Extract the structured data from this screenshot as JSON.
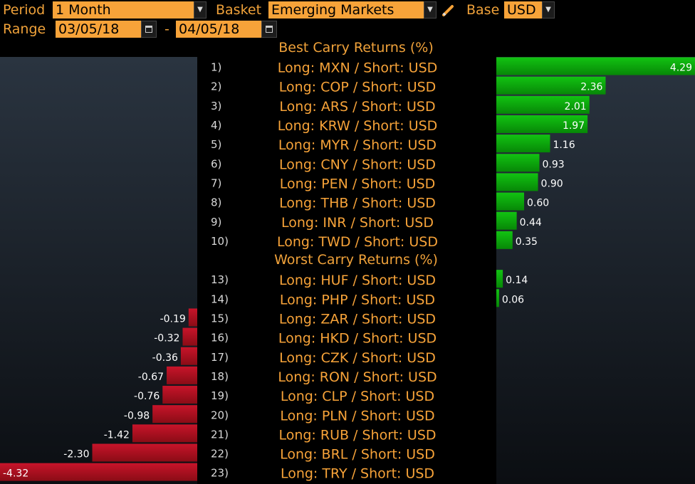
{
  "toolbar": {
    "period_label": "Period",
    "period_value": "1 Month",
    "basket_label": "Basket",
    "basket_value": "Emerging Markets",
    "base_label": "Base",
    "base_value": "USD",
    "range_label": "Range",
    "range_start": "03/05/18",
    "range_sep": "-",
    "range_end": "04/05/18",
    "dropdown_icon": "triangle-down-icon",
    "edit_icon": "pencil-icon",
    "calendar_icon": "calendar-icon"
  },
  "colors": {
    "accent_orange": "#f7a339",
    "positive_green": "#0db30d",
    "negative_red": "#b0101e"
  },
  "chart_data": [
    {
      "type": "bar",
      "title": "Best Carry Returns (%)",
      "ranks": [
        "1)",
        "2)",
        "3)",
        "4)",
        "5)",
        "6)",
        "7)",
        "8)",
        "9)",
        "10)"
      ],
      "categories": [
        "Long: MXN / Short: USD",
        "Long: COP / Short: USD",
        "Long: ARS / Short: USD",
        "Long: KRW / Short: USD",
        "Long: MYR / Short: USD",
        "Long: CNY / Short: USD",
        "Long: PEN / Short: USD",
        "Long: THB / Short: USD",
        "Long: INR / Short: USD",
        "Long: TWD / Short: USD"
      ],
      "values": [
        4.29,
        2.36,
        2.01,
        1.97,
        1.16,
        0.93,
        0.9,
        0.6,
        0.44,
        0.35
      ],
      "labels": [
        "4.29",
        "2.36",
        "2.01",
        "1.97",
        "1.16",
        "0.93",
        "0.90",
        "0.60",
        "0.44",
        "0.35"
      ]
    },
    {
      "type": "bar",
      "title": "Worst Carry Returns (%)",
      "ranks": [
        "13)",
        "14)",
        "15)",
        "16)",
        "17)",
        "18)",
        "19)",
        "20)",
        "21)",
        "22)",
        "23)"
      ],
      "categories": [
        "Long: HUF / Short: USD",
        "Long: PHP / Short: USD",
        "Long: ZAR / Short: USD",
        "Long: HKD / Short: USD",
        "Long: CZK / Short: USD",
        "Long: RON / Short: USD",
        "Long: CLP / Short: USD",
        "Long: PLN / Short: USD",
        "Long: RUB / Short: USD",
        "Long: BRL / Short: USD",
        "Long: TRY / Short: USD"
      ],
      "values": [
        0.14,
        0.06,
        -0.19,
        -0.32,
        -0.36,
        -0.67,
        -0.76,
        -0.98,
        -1.42,
        -2.3,
        -4.32
      ],
      "labels": [
        "0.14",
        "0.06",
        "-0.19",
        "-0.32",
        "-0.36",
        "-0.67",
        "-0.76",
        "-0.98",
        "-1.42",
        "-2.30",
        "-4.32"
      ]
    }
  ]
}
